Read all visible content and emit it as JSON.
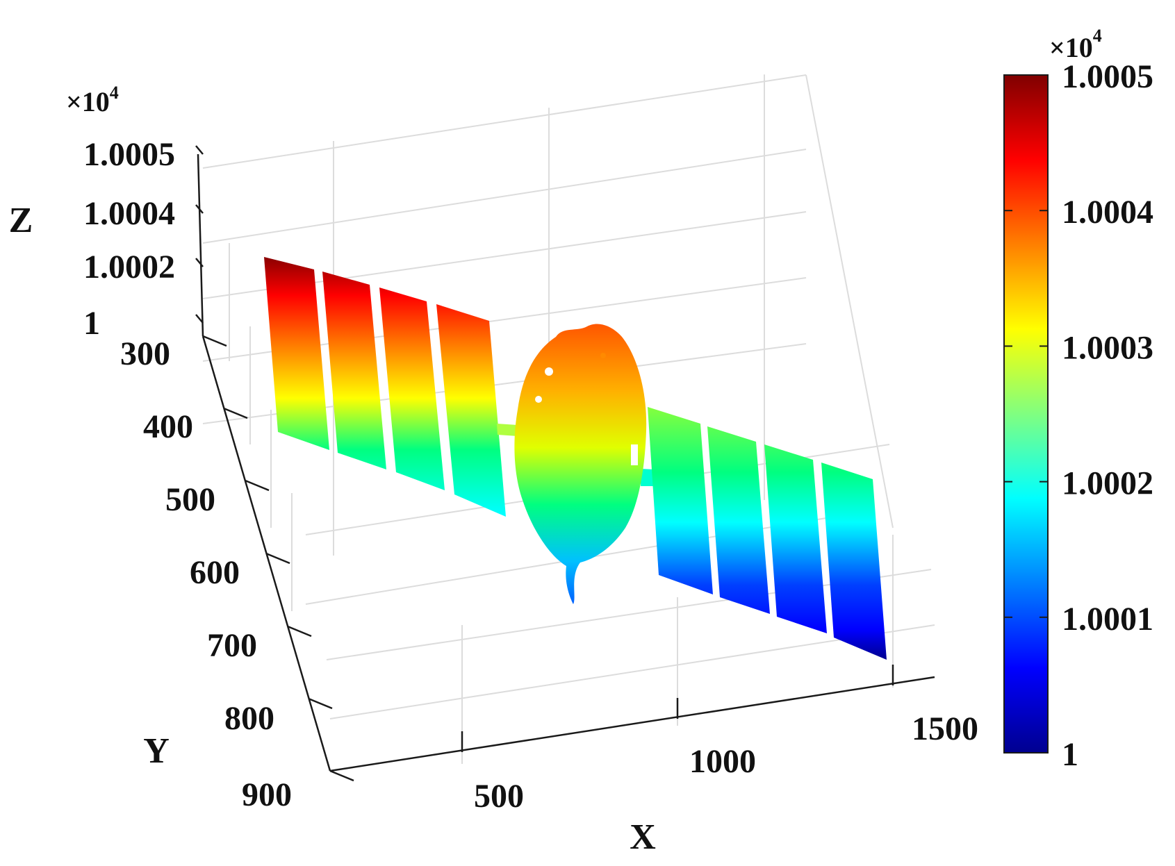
{
  "chart_data": {
    "type": "scatter",
    "subtype": "3d-point-cloud",
    "description_colormap": "jet",
    "xlabel": "X",
    "ylabel": "Y",
    "zlabel": "Z",
    "x_ticks": [
      "500",
      "1000",
      "1500"
    ],
    "x_tick_values": [
      500,
      1000,
      1500
    ],
    "xlim": [
      200,
      1600
    ],
    "y_ticks": [
      "300",
      "400",
      "500",
      "600",
      "700",
      "800",
      "900"
    ],
    "y_tick_values": [
      300,
      400,
      500,
      600,
      700,
      800,
      900
    ],
    "ylim": [
      300,
      900
    ],
    "z_ticks": [
      "1",
      "1.0002",
      "1.0004",
      "1.0005"
    ],
    "z_tick_values": [
      1,
      1.0002,
      1.0004,
      1.0005
    ],
    "z_multiplier": "×10",
    "z_multiplier_exp": "4",
    "grid": true,
    "colorbar": {
      "ticks": [
        "1",
        "1.0001",
        "1.0002",
        "1.0003",
        "1.0004",
        "1.0005"
      ],
      "tick_values": [
        1,
        1.0001,
        1.0002,
        1.0003,
        1.0004,
        1.0005
      ],
      "range": [
        1,
        1.0005
      ],
      "multiplier": "×10",
      "multiplier_exp": "4",
      "colors": [
        "#00008f",
        "#0000ff",
        "#0080ff",
        "#00ffff",
        "#80ff80",
        "#ffff00",
        "#ff8000",
        "#ff0000",
        "#800000"
      ]
    }
  }
}
